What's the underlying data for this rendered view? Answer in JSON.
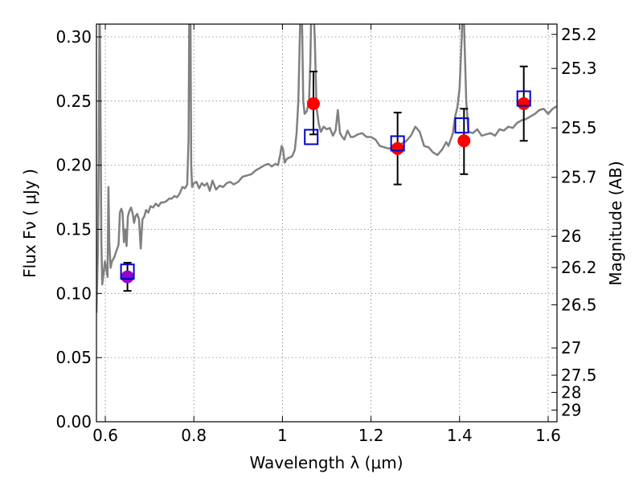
{
  "chart_data": {
    "type": "scatter",
    "xlabel": "Wavelength  λ (μm)",
    "ylabel": "Flux  Fν  ( μJy )",
    "y2label": "Magnitude (AB)",
    "xlim": [
      0.58,
      1.62
    ],
    "ylim": [
      0.0,
      0.31
    ],
    "grid": true,
    "x_ticks": [
      {
        "value": 0.6,
        "label": "0.6"
      },
      {
        "value": 0.8,
        "label": "0.8"
      },
      {
        "value": 1.0,
        "label": "1"
      },
      {
        "value": 1.2,
        "label": "1.2"
      },
      {
        "value": 1.4,
        "label": "1.4"
      },
      {
        "value": 1.6,
        "label": "1.6"
      }
    ],
    "y_ticks": [
      {
        "value": 0.0,
        "label": "0.00"
      },
      {
        "value": 0.05,
        "label": "0.05"
      },
      {
        "value": 0.1,
        "label": "0.10"
      },
      {
        "value": 0.15,
        "label": "0.15"
      },
      {
        "value": 0.2,
        "label": "0.20"
      },
      {
        "value": 0.25,
        "label": "0.25"
      },
      {
        "value": 0.3,
        "label": "0.30"
      }
    ],
    "mag_ticks": [
      {
        "value": 25.2,
        "label": "25.2"
      },
      {
        "value": 25.3,
        "label": "25.3"
      },
      {
        "value": 25.5,
        "label": "25.5"
      },
      {
        "value": 25.7,
        "label": "25.7"
      },
      {
        "value": 26,
        "label": "26"
      },
      {
        "value": 26.2,
        "label": "26.2"
      },
      {
        "value": 26.5,
        "label": "26.5"
      },
      {
        "value": 27,
        "label": "27"
      },
      {
        "value": 27.5,
        "label": "27.5"
      },
      {
        "value": 28,
        "label": "28"
      },
      {
        "value": 29,
        "label": "29"
      }
    ],
    "colors": {
      "spectrum": "#808080",
      "observed": "#ff0000",
      "model": "#0000cc",
      "first_point": "#9900cc",
      "errorbar": "#000000",
      "grid": "#808080"
    },
    "observed": [
      {
        "x": 0.65,
        "y": 0.113,
        "yerr": [
          0.011,
          0.011
        ]
      },
      {
        "x": 1.07,
        "y": 0.248,
        "yerr": [
          0.024,
          0.025
        ]
      },
      {
        "x": 1.26,
        "y": 0.213,
        "yerr": [
          0.028,
          0.028
        ]
      },
      {
        "x": 1.41,
        "y": 0.219,
        "yerr": [
          0.026,
          0.025
        ]
      },
      {
        "x": 1.545,
        "y": 0.248,
        "yerr": [
          0.029,
          0.029
        ]
      }
    ],
    "model_points": [
      {
        "x": 0.65,
        "y": 0.117
      },
      {
        "x": 1.065,
        "y": 0.222
      },
      {
        "x": 1.26,
        "y": 0.217
      },
      {
        "x": 1.405,
        "y": 0.231
      },
      {
        "x": 1.545,
        "y": 0.252
      }
    ],
    "spectrum": [
      [
        0.58,
        0.085
      ],
      [
        0.583,
        0.13
      ],
      [
        0.585,
        0.2
      ],
      [
        0.587,
        0.33
      ],
      [
        0.589,
        0.25
      ],
      [
        0.591,
        0.14
      ],
      [
        0.593,
        0.107
      ],
      [
        0.596,
        0.115
      ],
      [
        0.599,
        0.125
      ],
      [
        0.602,
        0.12
      ],
      [
        0.605,
        0.113
      ],
      [
        0.607,
        0.183
      ],
      [
        0.609,
        0.14
      ],
      [
        0.612,
        0.12
      ],
      [
        0.615,
        0.125
      ],
      [
        0.62,
        0.128
      ],
      [
        0.625,
        0.133
      ],
      [
        0.63,
        0.138
      ],
      [
        0.633,
        0.163
      ],
      [
        0.636,
        0.166
      ],
      [
        0.639,
        0.163
      ],
      [
        0.642,
        0.14
      ],
      [
        0.645,
        0.15
      ],
      [
        0.648,
        0.137
      ],
      [
        0.651,
        0.16
      ],
      [
        0.654,
        0.164
      ],
      [
        0.658,
        0.167
      ],
      [
        0.662,
        0.162
      ],
      [
        0.665,
        0.155
      ],
      [
        0.668,
        0.16
      ],
      [
        0.672,
        0.162
      ],
      [
        0.676,
        0.158
      ],
      [
        0.68,
        0.135
      ],
      [
        0.684,
        0.158
      ],
      [
        0.688,
        0.16
      ],
      [
        0.692,
        0.165
      ],
      [
        0.697,
        0.163
      ],
      [
        0.702,
        0.168
      ],
      [
        0.708,
        0.167
      ],
      [
        0.714,
        0.17
      ],
      [
        0.72,
        0.168
      ],
      [
        0.726,
        0.171
      ],
      [
        0.732,
        0.171
      ],
      [
        0.738,
        0.172
      ],
      [
        0.744,
        0.174
      ],
      [
        0.75,
        0.174
      ],
      [
        0.756,
        0.176
      ],
      [
        0.762,
        0.175
      ],
      [
        0.768,
        0.178
      ],
      [
        0.774,
        0.183
      ],
      [
        0.78,
        0.182
      ],
      [
        0.785,
        0.185
      ],
      [
        0.788,
        0.22
      ],
      [
        0.79,
        0.34
      ],
      [
        0.792,
        0.34
      ],
      [
        0.794,
        0.2
      ],
      [
        0.796,
        0.183
      ],
      [
        0.8,
        0.186
      ],
      [
        0.806,
        0.187
      ],
      [
        0.812,
        0.182
      ],
      [
        0.818,
        0.186
      ],
      [
        0.824,
        0.184
      ],
      [
        0.83,
        0.186
      ],
      [
        0.836,
        0.18
      ],
      [
        0.842,
        0.188
      ],
      [
        0.85,
        0.181
      ],
      [
        0.858,
        0.184
      ],
      [
        0.866,
        0.183
      ],
      [
        0.874,
        0.186
      ],
      [
        0.882,
        0.187
      ],
      [
        0.89,
        0.185
      ],
      [
        0.9,
        0.187
      ],
      [
        0.91,
        0.191
      ],
      [
        0.92,
        0.192
      ],
      [
        0.93,
        0.193
      ],
      [
        0.94,
        0.196
      ],
      [
        0.95,
        0.198
      ],
      [
        0.96,
        0.2
      ],
      [
        0.968,
        0.201
      ],
      [
        0.976,
        0.199
      ],
      [
        0.984,
        0.201
      ],
      [
        0.99,
        0.2
      ],
      [
        0.995,
        0.208
      ],
      [
        0.998,
        0.215
      ],
      [
        1.001,
        0.213
      ],
      [
        1.005,
        0.202
      ],
      [
        1.01,
        0.205
      ],
      [
        1.016,
        0.206
      ],
      [
        1.022,
        0.207
      ],
      [
        1.028,
        0.212
      ],
      [
        1.032,
        0.225
      ],
      [
        1.036,
        0.25
      ],
      [
        1.04,
        0.31
      ],
      [
        1.043,
        0.34
      ],
      [
        1.047,
        0.25
      ],
      [
        1.05,
        0.24
      ],
      [
        1.055,
        0.242
      ],
      [
        1.06,
        0.25
      ],
      [
        1.063,
        0.28
      ],
      [
        1.066,
        0.34
      ],
      [
        1.069,
        0.33
      ],
      [
        1.073,
        0.3
      ],
      [
        1.077,
        0.245
      ],
      [
        1.082,
        0.232
      ],
      [
        1.087,
        0.226
      ],
      [
        1.093,
        0.23
      ],
      [
        1.1,
        0.228
      ],
      [
        1.107,
        0.229
      ],
      [
        1.114,
        0.223
      ],
      [
        1.12,
        0.227
      ],
      [
        1.125,
        0.243
      ],
      [
        1.13,
        0.225
      ],
      [
        1.135,
        0.222
      ],
      [
        1.14,
        0.22
      ],
      [
        1.147,
        0.227
      ],
      [
        1.154,
        0.222
      ],
      [
        1.16,
        0.222
      ],
      [
        1.17,
        0.224
      ],
      [
        1.18,
        0.225
      ],
      [
        1.19,
        0.222
      ],
      [
        1.2,
        0.222
      ],
      [
        1.21,
        0.22
      ],
      [
        1.22,
        0.215
      ],
      [
        1.23,
        0.214
      ],
      [
        1.24,
        0.213
      ],
      [
        1.25,
        0.214
      ],
      [
        1.26,
        0.214
      ],
      [
        1.27,
        0.217
      ],
      [
        1.28,
        0.219
      ],
      [
        1.29,
        0.223
      ],
      [
        1.3,
        0.23
      ],
      [
        1.31,
        0.226
      ],
      [
        1.32,
        0.215
      ],
      [
        1.33,
        0.214
      ],
      [
        1.34,
        0.21
      ],
      [
        1.35,
        0.208
      ],
      [
        1.36,
        0.212
      ],
      [
        1.37,
        0.218
      ],
      [
        1.375,
        0.215
      ],
      [
        1.38,
        0.22
      ],
      [
        1.385,
        0.225
      ],
      [
        1.39,
        0.238
      ],
      [
        1.395,
        0.245
      ],
      [
        1.4,
        0.26
      ],
      [
        1.405,
        0.3
      ],
      [
        1.408,
        0.34
      ],
      [
        1.411,
        0.3
      ],
      [
        1.415,
        0.25
      ],
      [
        1.42,
        0.226
      ],
      [
        1.43,
        0.225
      ],
      [
        1.44,
        0.228
      ],
      [
        1.45,
        0.223
      ],
      [
        1.46,
        0.224
      ],
      [
        1.47,
        0.225
      ],
      [
        1.48,
        0.223
      ],
      [
        1.49,
        0.228
      ],
      [
        1.5,
        0.227
      ],
      [
        1.51,
        0.23
      ],
      [
        1.52,
        0.229
      ],
      [
        1.53,
        0.233
      ],
      [
        1.54,
        0.235
      ],
      [
        1.55,
        0.236
      ],
      [
        1.56,
        0.238
      ],
      [
        1.57,
        0.24
      ],
      [
        1.58,
        0.243
      ],
      [
        1.59,
        0.244
      ],
      [
        1.6,
        0.24
      ],
      [
        1.61,
        0.244
      ],
      [
        1.62,
        0.246
      ]
    ]
  }
}
